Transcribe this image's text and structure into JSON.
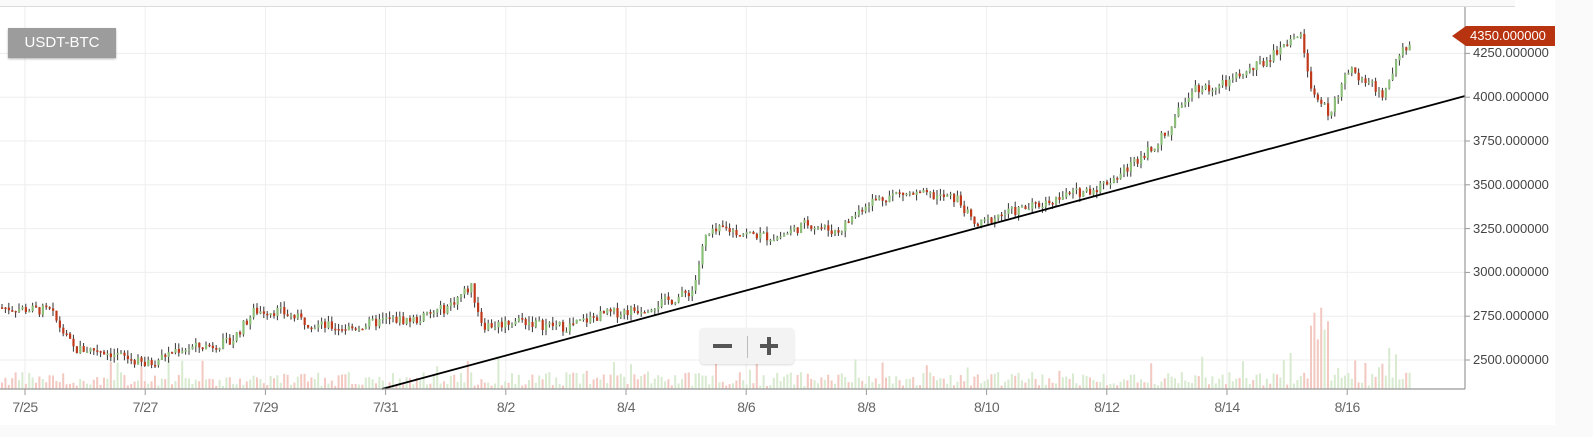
{
  "chart_data": {
    "type": "candlestick",
    "title": "USDT-BTC",
    "symbol": "USDT-BTC",
    "current_price": "4350.000000",
    "xlabel": "",
    "ylabel": "",
    "ylim": [
      2340,
      4440
    ],
    "grid": true,
    "y_ticks": [
      "2500.000000",
      "2750.000000",
      "3000.000000",
      "3250.000000",
      "3500.000000",
      "3750.000000",
      "4000.000000",
      "4250.000000"
    ],
    "y_tick_values": [
      2500,
      2750,
      3000,
      3250,
      3500,
      3750,
      4000,
      4250
    ],
    "x_ticks": [
      "7/25",
      "7/27",
      "7/29",
      "7/31",
      "8/2",
      "8/4",
      "8/6",
      "8/8",
      "8/10",
      "8/12",
      "8/14",
      "8/16"
    ],
    "price_path": {
      "x_dates": [
        "7/24.6",
        "7/25",
        "7/25.4",
        "7/25.8",
        "7/26.2",
        "7/26.6",
        "7/27",
        "7/27.5",
        "7/28",
        "7/28.4",
        "7/28.8",
        "7/29.2",
        "7/29.8",
        "7/30.4",
        "7/31",
        "7/31.5",
        "8/1",
        "8/1.4",
        "8/1.6",
        "8/1.8",
        "8/2.2",
        "8/2.6",
        "8/3",
        "8/3.6",
        "8/4.2",
        "8/4.8",
        "8/5.1",
        "8/5.3",
        "8/5.6",
        "8/6",
        "8/6.5",
        "8/7",
        "8/7.5",
        "8/8",
        "8/8.5",
        "8/9",
        "8/9.5",
        "8/9.8",
        "8/10.2",
        "8/10.8",
        "8/11.3",
        "8/11.8",
        "8/12.2",
        "8/12.6",
        "8/13",
        "8/13.4",
        "8/13.8",
        "8/14.2",
        "8/14.6",
        "8/15",
        "8/15.2",
        "8/15.4",
        "8/15.7",
        "8/16",
        "8/16.3",
        "8/16.6",
        "8/16.9",
        "8/17.2"
      ],
      "close": [
        2800,
        2790,
        2780,
        2560,
        2560,
        2520,
        2470,
        2560,
        2580,
        2600,
        2780,
        2780,
        2700,
        2680,
        2730,
        2730,
        2800,
        2920,
        2700,
        2700,
        2730,
        2700,
        2690,
        2760,
        2790,
        2850,
        2900,
        3200,
        3250,
        3220,
        3200,
        3280,
        3230,
        3400,
        3450,
        3440,
        3420,
        3260,
        3330,
        3380,
        3440,
        3480,
        3560,
        3680,
        3800,
        4060,
        4050,
        4120,
        4200,
        4330,
        4350,
        4050,
        3900,
        4150,
        4100,
        4000,
        4280,
        4350
      ]
    },
    "volume_peaks_note": "Volume histogram at bottom; largest spike near 8/15"
  },
  "ui": {
    "symbol_badge": "USDT-BTC",
    "price_tag": "4350.000000",
    "zoom_out_label": "−",
    "zoom_in_label": "+"
  },
  "colors": {
    "up": "#8cbf7a",
    "down": "#c0391b",
    "wick": "#333333",
    "trendline": "#000000",
    "grid": "#eeeeee",
    "price_tag": "#b8330f",
    "badge": "#9b9c9b",
    "vol_up": "#d8ead0",
    "vol_down": "#f2c8c0"
  }
}
